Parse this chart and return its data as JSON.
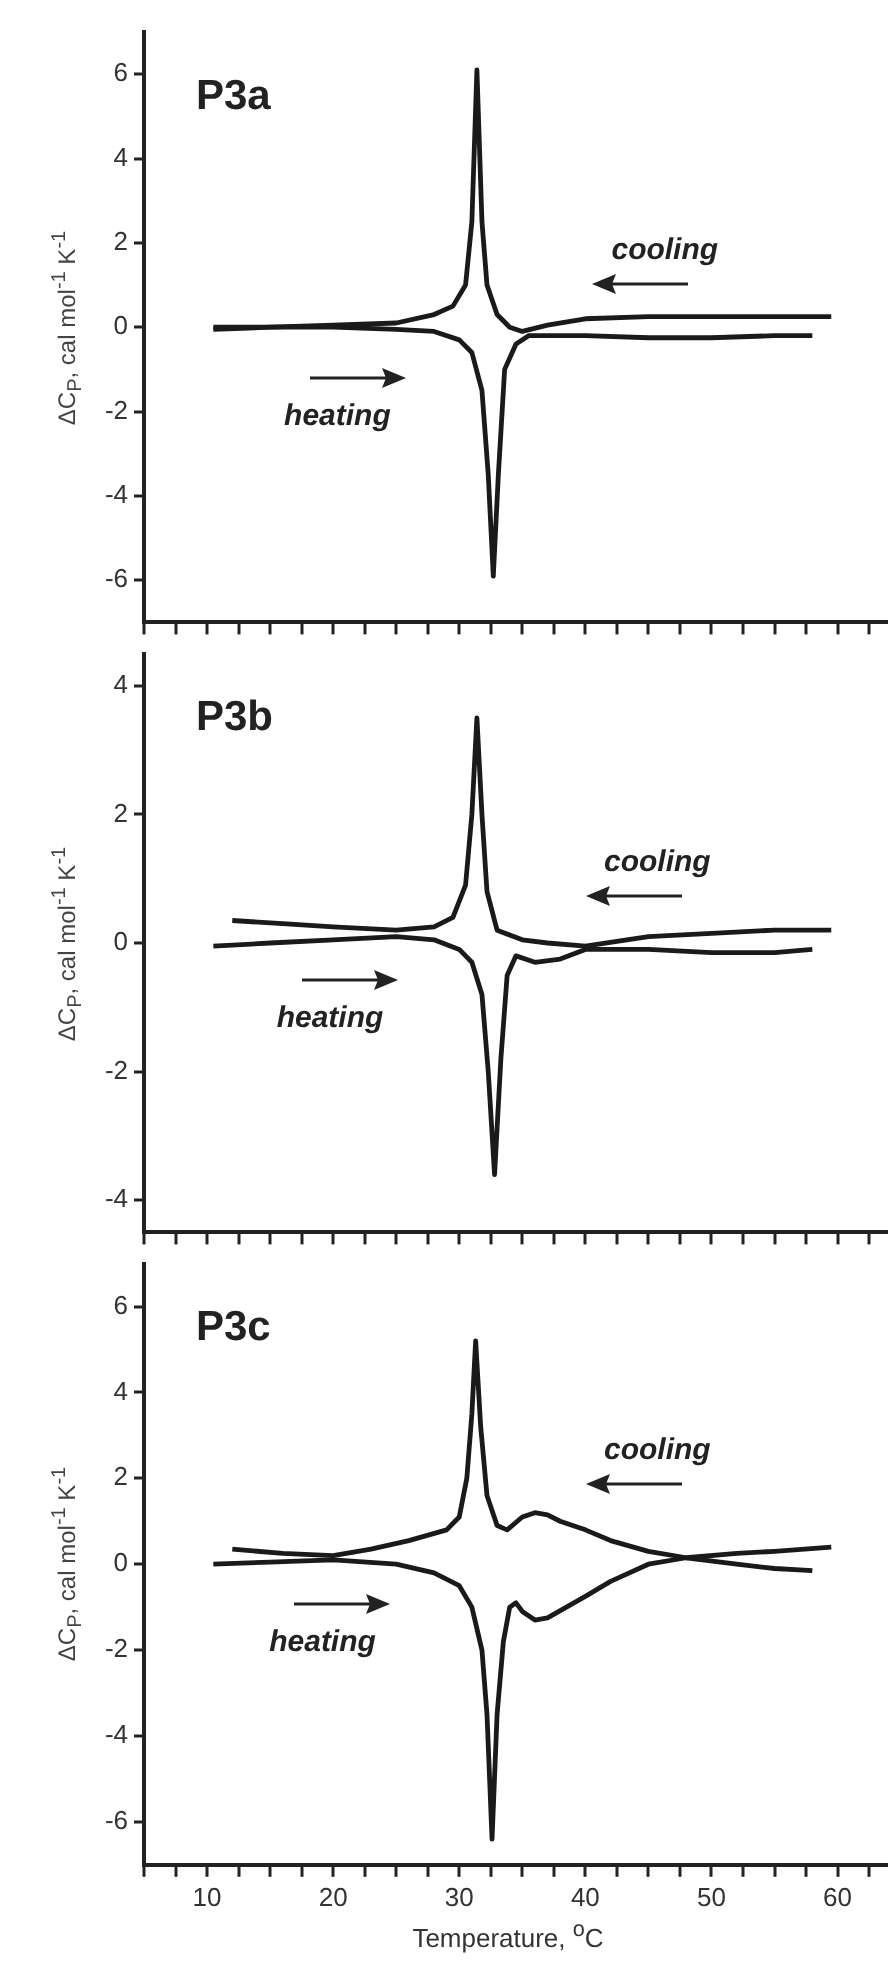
{
  "chart_data": [
    {
      "type": "line",
      "title": "P3a",
      "ylabel": "ΔC$_{P}$, cal mol$^{-1}$ K$^{-1}$",
      "xlim": [
        5,
        64
      ],
      "ylim": [
        -7,
        7
      ],
      "yticks": [
        -6,
        -4,
        -2,
        0,
        2,
        4,
        6
      ],
      "tick_labels": "y",
      "xticks": [
        5,
        7.5,
        10,
        12.5,
        15,
        17.5,
        20,
        22.5,
        25,
        27.5,
        30,
        32.5,
        35,
        37.5,
        40,
        42.5,
        45,
        47.5,
        50,
        52.5,
        55,
        57.5,
        60,
        62.5
      ],
      "series": [
        {
          "color": "#1a1a1a",
          "x": [
            10.5,
            15,
            20,
            25,
            28,
            29.5,
            30.5,
            31,
            31.4,
            31.8,
            32.2,
            33,
            34,
            35,
            37,
            40,
            45,
            50,
            55,
            59.5
          ],
          "values": [
            -0.05,
            0,
            0.05,
            0.1,
            0.3,
            0.5,
            1,
            2.5,
            6.1,
            2.5,
            1,
            0.3,
            0,
            -0.1,
            0.05,
            0.2,
            0.25,
            0.25,
            0.25,
            0.25
          ]
        },
        {
          "color": "#1a1a1a",
          "x": [
            10.5,
            15,
            20,
            25,
            28,
            30,
            31,
            31.8,
            32.3,
            32.7,
            33.1,
            33.6,
            34.5,
            35.5,
            40,
            45,
            50,
            55,
            58
          ],
          "values": [
            0,
            0,
            0,
            -0.05,
            -0.1,
            -0.3,
            -0.6,
            -1.5,
            -3.5,
            -5.9,
            -3.5,
            -1,
            -0.4,
            -0.2,
            -0.2,
            -0.25,
            -0.25,
            -0.2,
            -0.2
          ]
        }
      ],
      "annotations": [
        "cooling",
        "heating"
      ]
    },
    {
      "type": "line",
      "title": "P3b",
      "ylabel": "ΔC$_{P}$, cal mol$^{-1}$ K$^{-1}$",
      "xlim": [
        5,
        64
      ],
      "ylim": [
        -4.5,
        4.5
      ],
      "yticks": [
        -4,
        -2,
        0,
        2,
        4
      ],
      "tick_labels": "y",
      "xticks": [
        5,
        7.5,
        10,
        12.5,
        15,
        17.5,
        20,
        22.5,
        25,
        27.5,
        30,
        32.5,
        35,
        37.5,
        40,
        42.5,
        45,
        47.5,
        50,
        52.5,
        55,
        57.5,
        60,
        62.5
      ],
      "series": [
        {
          "color": "#1a1a1a",
          "x": [
            12,
            16,
            20,
            25,
            28,
            29.5,
            30.5,
            31,
            31.4,
            31.8,
            32.2,
            33,
            35,
            37,
            40,
            45,
            50,
            55,
            59.5
          ],
          "values": [
            0.35,
            0.3,
            0.25,
            0.2,
            0.25,
            0.4,
            0.9,
            2,
            3.5,
            2,
            0.8,
            0.2,
            0.05,
            0,
            -0.05,
            0.1,
            0.15,
            0.2,
            0.2
          ]
        },
        {
          "color": "#1a1a1a",
          "x": [
            10.5,
            15,
            20,
            25,
            28,
            30,
            31,
            31.8,
            32.3,
            32.8,
            33.3,
            33.8,
            34.5,
            36,
            38,
            40,
            45,
            50,
            55,
            58
          ],
          "values": [
            -0.05,
            0,
            0.05,
            0.1,
            0.05,
            -0.1,
            -0.3,
            -0.8,
            -2,
            -3.6,
            -1.8,
            -0.5,
            -0.2,
            -0.3,
            -0.25,
            -0.1,
            -0.1,
            -0.15,
            -0.15,
            -0.1
          ]
        }
      ],
      "annotations": [
        "cooling",
        "heating"
      ]
    },
    {
      "type": "line",
      "title": "P3c",
      "ylabel": "ΔC$_{P}$, cal mol$^{-1}$ K$^{-1}$",
      "xlabel": "Temperature, $^{o}$C",
      "xlim": [
        5,
        64
      ],
      "ylim": [
        -7,
        7
      ],
      "yticks": [
        -6,
        -4,
        -2,
        0,
        2,
        4,
        6
      ],
      "xticks": [
        {
          "value": 5,
          "label": null
        },
        {
          "value": 7.5,
          "label": null
        },
        {
          "value": 10,
          "label": "10"
        },
        {
          "value": 12.5,
          "label": null
        },
        {
          "value": 15,
          "label": null
        },
        {
          "value": 17.5,
          "label": null
        },
        {
          "value": 20,
          "label": "20"
        },
        {
          "value": 22.5,
          "label": null
        },
        {
          "value": 25,
          "label": null
        },
        {
          "value": 27.5,
          "label": null
        },
        {
          "value": 30,
          "label": "30"
        },
        {
          "value": 32.5,
          "label": null
        },
        {
          "value": 35,
          "label": null
        },
        {
          "value": 37.5,
          "label": null
        },
        {
          "value": 40,
          "label": "40"
        },
        {
          "value": 42.5,
          "label": null
        },
        {
          "value": 45,
          "label": null
        },
        {
          "value": 47.5,
          "label": null
        },
        {
          "value": 50,
          "label": "50"
        },
        {
          "value": 52.5,
          "label": null
        },
        {
          "value": 55,
          "label": null
        },
        {
          "value": 57.5,
          "label": null
        },
        {
          "value": 60,
          "label": "60"
        },
        {
          "value": 62.5,
          "label": null
        }
      ],
      "series": [
        {
          "color": "#1a1a1a",
          "x": [
            12,
            16,
            20,
            23,
            26,
            29,
            30,
            30.6,
            31,
            31.3,
            31.7,
            32.2,
            33,
            33.8,
            35,
            36,
            37,
            38,
            40,
            42,
            45,
            48,
            52,
            55,
            58
          ],
          "values": [
            0.35,
            0.25,
            0.2,
            0.35,
            0.55,
            0.8,
            1.1,
            2,
            3.5,
            5.2,
            3.2,
            1.6,
            0.9,
            0.8,
            1.1,
            1.2,
            1.15,
            1,
            0.8,
            0.55,
            0.3,
            0.15,
            0,
            -0.1,
            -0.15
          ]
        },
        {
          "color": "#1a1a1a",
          "x": [
            10.5,
            15,
            20,
            25,
            28,
            30,
            31,
            31.8,
            32.2,
            32.6,
            33,
            33.5,
            34,
            34.5,
            35,
            36,
            37,
            38.5,
            40,
            42,
            45,
            48,
            52,
            55,
            59.5
          ],
          "values": [
            0,
            0.05,
            0.1,
            0,
            -0.2,
            -0.5,
            -1,
            -2,
            -3.5,
            -6.4,
            -3.5,
            -1.8,
            -1,
            -0.9,
            -1.1,
            -1.3,
            -1.25,
            -1,
            -0.75,
            -0.4,
            0,
            0.15,
            0.25,
            0.3,
            0.4
          ]
        }
      ],
      "annotations": [
        "cooling",
        "heating"
      ]
    }
  ]
}
